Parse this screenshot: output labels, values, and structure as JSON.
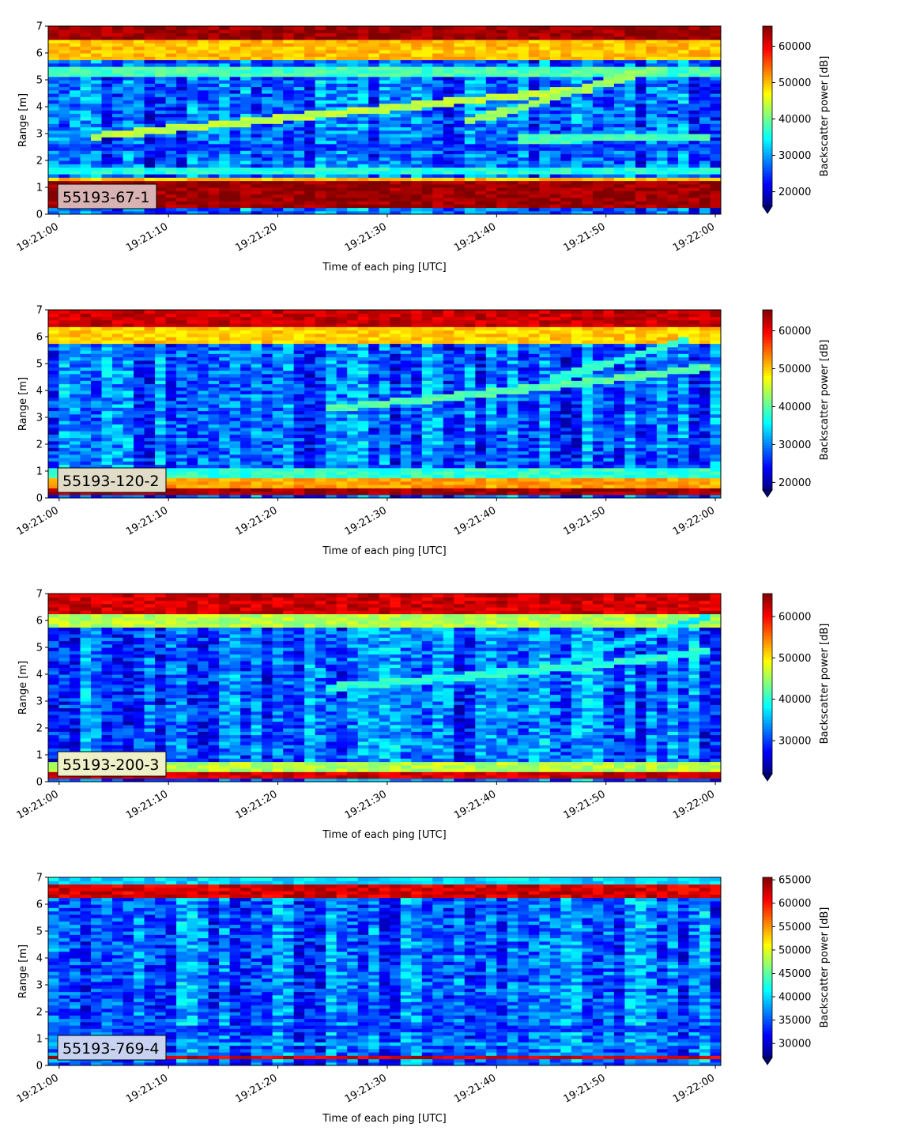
{
  "figure": {
    "colormap": "jet",
    "colormap_colors": [
      "#00007f",
      "#0000ff",
      "#007fff",
      "#00ffff",
      "#7fff7f",
      "#ffff00",
      "#ff7f00",
      "#ff0000",
      "#7f0000"
    ]
  },
  "chart_data": [
    {
      "type": "heatmap",
      "label": "55193-67-1",
      "label_box_color": "#d9b3b3",
      "xlabel": "Time of each ping [UTC]",
      "ylabel": "Range [m]",
      "ylim": [
        0,
        7
      ],
      "xlim": [
        "19:21:00",
        "19:22:00"
      ],
      "yticks": [
        "0",
        "1",
        "2",
        "3",
        "4",
        "5",
        "6",
        "7"
      ],
      "xticks": [
        "19:21:00",
        "19:21:10",
        "19:21:20",
        "19:21:30",
        "19:21:40",
        "19:21:50",
        "19:22:00"
      ],
      "colorbar": {
        "label": "Backscatter power [dB]",
        "range": [
          16000,
          65535
        ],
        "ticks": [
          "20000",
          "30000",
          "40000",
          "50000",
          "60000"
        ],
        "extend": "min"
      },
      "bands": [
        {
          "kind": "level",
          "range_m": [
            0.2,
            1.2
          ],
          "value": 64000
        },
        {
          "kind": "level",
          "range_m": [
            1.2,
            1.4
          ],
          "value": 50000
        },
        {
          "kind": "level",
          "range_m": [
            1.5,
            1.7
          ],
          "value": 36000
        },
        {
          "kind": "level",
          "range_m": [
            2.4,
            2.6
          ],
          "value": 25000
        },
        {
          "kind": "level",
          "range_m": [
            5.1,
            5.5
          ],
          "value": 38000
        },
        {
          "kind": "level",
          "range_m": [
            5.8,
            6.5
          ],
          "value": 50000
        },
        {
          "kind": "level",
          "range_m": [
            6.5,
            7.0
          ],
          "value": 64000
        },
        {
          "kind": "trace",
          "start": [
            "19:21:03",
            2.9
          ],
          "end": [
            "19:21:49",
            4.7
          ],
          "value": 44000
        },
        {
          "kind": "trace",
          "start": [
            "19:21:37",
            3.4
          ],
          "end": [
            "19:21:55",
            5.5
          ],
          "value": 42000
        },
        {
          "kind": "trace",
          "start": [
            "19:21:42",
            2.8
          ],
          "end": [
            "19:22:00",
            2.9
          ],
          "value": 38000
        }
      ]
    },
    {
      "type": "heatmap",
      "label": "55193-120-2",
      "label_box_color": "#e0dcc8",
      "xlabel": "Time of each ping [UTC]",
      "ylabel": "Range [m]",
      "ylim": [
        0,
        7
      ],
      "xlim": [
        "19:21:00",
        "19:22:00"
      ],
      "yticks": [
        "0",
        "1",
        "2",
        "3",
        "4",
        "5",
        "6",
        "7"
      ],
      "xticks": [
        "19:21:00",
        "19:21:10",
        "19:21:20",
        "19:21:30",
        "19:21:40",
        "19:21:50",
        "19:22:00"
      ],
      "colorbar": {
        "label": "Backscatter power [dB]",
        "range": [
          18000,
          65535
        ],
        "ticks": [
          "20000",
          "30000",
          "40000",
          "50000",
          "60000"
        ],
        "extend": "min"
      },
      "bands": [
        {
          "kind": "level",
          "range_m": [
            0.1,
            0.4
          ],
          "value": 64000
        },
        {
          "kind": "level",
          "range_m": [
            0.4,
            0.7
          ],
          "value": 52000
        },
        {
          "kind": "level",
          "range_m": [
            0.7,
            1.1
          ],
          "value": 38000
        },
        {
          "kind": "level",
          "range_m": [
            5.8,
            6.4
          ],
          "value": 50000
        },
        {
          "kind": "level",
          "range_m": [
            6.4,
            7.0
          ],
          "value": 62000
        },
        {
          "kind": "trace",
          "start": [
            "19:21:24",
            3.3
          ],
          "end": [
            "19:21:48",
            4.3
          ],
          "value": 40000
        },
        {
          "kind": "trace",
          "start": [
            "19:21:48",
            4.3
          ],
          "end": [
            "19:22:00",
            4.9
          ],
          "value": 40000
        },
        {
          "kind": "trace",
          "start": [
            "19:21:45",
            4.4
          ],
          "end": [
            "19:21:58",
            6.0
          ],
          "value": 38000
        }
      ]
    },
    {
      "type": "heatmap",
      "label": "55193-200-3",
      "label_box_color": "#eef0c8",
      "xlabel": "Time of each ping [UTC]",
      "ylabel": "Range [m]",
      "ylim": [
        0,
        7
      ],
      "xlim": [
        "19:21:00",
        "19:22:00"
      ],
      "yticks": [
        "0",
        "1",
        "2",
        "3",
        "4",
        "5",
        "6",
        "7"
      ],
      "xticks": [
        "19:21:00",
        "19:21:10",
        "19:21:20",
        "19:21:30",
        "19:21:40",
        "19:21:50",
        "19:22:00"
      ],
      "colorbar": {
        "label": "Backscatter power [dB]",
        "range": [
          22000,
          65535
        ],
        "ticks": [
          "30000",
          "40000",
          "50000",
          "60000"
        ],
        "extend": "min"
      },
      "bands": [
        {
          "kind": "level",
          "range_m": [
            0.1,
            0.4
          ],
          "value": 62000
        },
        {
          "kind": "level",
          "range_m": [
            0.4,
            0.8
          ],
          "value": 46000
        },
        {
          "kind": "level",
          "range_m": [
            5.7,
            6.3
          ],
          "value": 46000
        },
        {
          "kind": "level",
          "range_m": [
            6.3,
            7.0
          ],
          "value": 62000
        },
        {
          "kind": "trace",
          "start": [
            "19:21:24",
            3.5
          ],
          "end": [
            "19:21:48",
            4.3
          ],
          "value": 40000
        },
        {
          "kind": "trace",
          "start": [
            "19:21:48",
            4.3
          ],
          "end": [
            "19:22:00",
            4.9
          ],
          "value": 40000
        },
        {
          "kind": "trace",
          "start": [
            "19:21:46",
            4.5
          ],
          "end": [
            "19:22:00",
            6.2
          ],
          "value": 38000
        }
      ]
    },
    {
      "type": "heatmap",
      "label": "55193-769-4",
      "label_box_color": "#c8d2f0",
      "xlabel": "Time of each ping [UTC]",
      "ylabel": "Range [m]",
      "ylim": [
        0,
        7
      ],
      "xlim": [
        "19:21:00",
        "19:22:00"
      ],
      "yticks": [
        "0",
        "1",
        "2",
        "3",
        "4",
        "5",
        "6",
        "7"
      ],
      "xticks": [
        "19:21:00",
        "19:21:10",
        "19:21:20",
        "19:21:30",
        "19:21:40",
        "19:21:50",
        "19:22:00"
      ],
      "colorbar": {
        "label": "Backscatter power [dB]",
        "range": [
          27000,
          65535
        ],
        "ticks": [
          "30000",
          "35000",
          "40000",
          "45000",
          "50000",
          "55000",
          "60000",
          "65000"
        ],
        "extend": "min"
      },
      "bands": [
        {
          "kind": "level",
          "range_m": [
            0.2,
            0.35
          ],
          "value": 62000
        },
        {
          "kind": "level",
          "range_m": [
            0.7,
            0.9
          ],
          "value": 38000
        },
        {
          "kind": "level",
          "range_m": [
            1.3,
            1.5
          ],
          "value": 34000
        },
        {
          "kind": "level",
          "range_m": [
            6.3,
            6.7
          ],
          "value": 62000
        },
        {
          "kind": "level",
          "range_m": [
            6.7,
            7.0
          ],
          "value": 40000
        }
      ]
    }
  ]
}
